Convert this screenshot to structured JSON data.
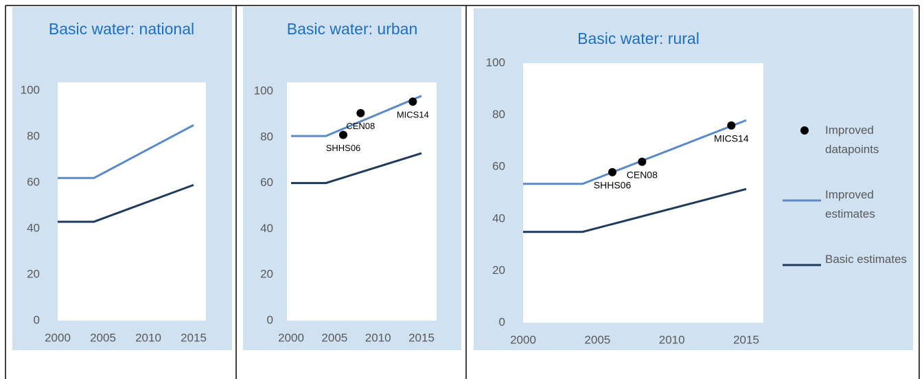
{
  "chart_data": [
    {
      "type": "line",
      "title": "Basic water: national",
      "x": [
        2000,
        2004,
        2015
      ],
      "xlim": [
        2000,
        2015
      ],
      "xticks": [
        2000,
        2005,
        2010,
        2015
      ],
      "ylim": [
        0,
        100
      ],
      "yticks": [
        0,
        20,
        40,
        60,
        80,
        100
      ],
      "series": [
        {
          "color": "#5b8ac6",
          "values": [
            62,
            62,
            85
          ]
        },
        {
          "color": "#1f3a5a",
          "values": [
            43,
            43,
            59
          ]
        }
      ]
    },
    {
      "type": "line",
      "title": "Basic water: urban",
      "x": [
        2000,
        2004,
        2015
      ],
      "xlim": [
        2000,
        2015
      ],
      "xticks": [
        2000,
        2005,
        2010,
        2015
      ],
      "ylim": [
        0,
        100
      ],
      "yticks": [
        0,
        20,
        40,
        60,
        80,
        100
      ],
      "series": [
        {
          "color": "#5b8ac6",
          "values": [
            80.5,
            80.5,
            98
          ]
        },
        {
          "color": "#1f3a5a",
          "values": [
            60,
            60,
            73
          ]
        }
      ],
      "points": {
        "color": "#000000",
        "x": [
          2006,
          2008,
          2014
        ],
        "values": [
          81,
          90.5,
          95.5
        ],
        "labels": [
          "SHHS06",
          "CEN08",
          "MICS14"
        ]
      }
    },
    {
      "type": "line",
      "title": "Basic water: rural",
      "x": [
        2000,
        2004,
        2015
      ],
      "xlim": [
        2000,
        2015
      ],
      "xticks": [
        2000,
        2005,
        2010,
        2015
      ],
      "ylim": [
        0,
        100
      ],
      "yticks": [
        0,
        20,
        40,
        60,
        80,
        100
      ],
      "series": [
        {
          "name": "Improved estimates",
          "color": "#5b8ac6",
          "values": [
            53.5,
            53.5,
            78
          ]
        },
        {
          "name": "Basic estimates",
          "color": "#1f3a5a",
          "values": [
            35,
            35,
            51.5
          ]
        }
      ],
      "points": {
        "name": "Improved datapoints",
        "color": "#000000",
        "x": [
          2006,
          2008,
          2014
        ],
        "values": [
          58,
          62,
          76
        ],
        "labels": [
          "SHHS06",
          "CEN08",
          "MICS14"
        ]
      },
      "legend": "right"
    }
  ]
}
